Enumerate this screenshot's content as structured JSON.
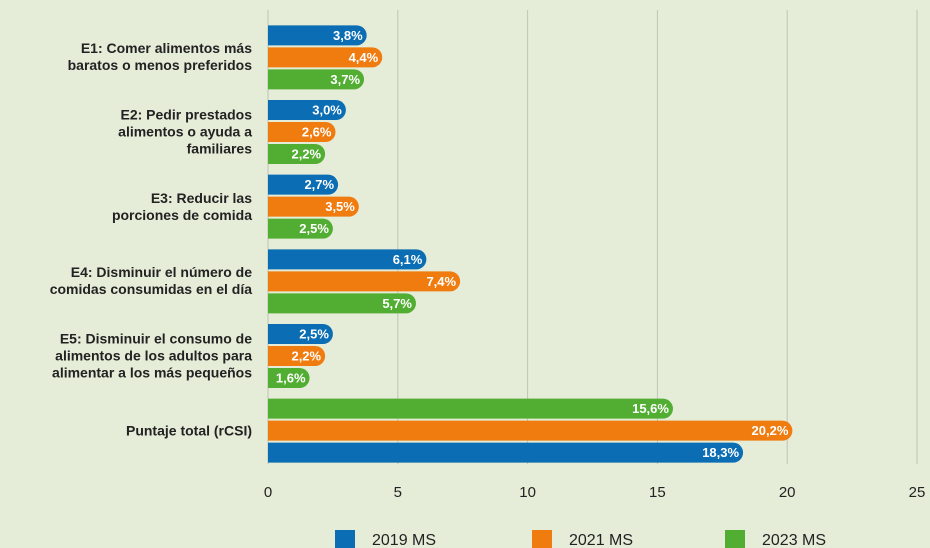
{
  "chart_data": {
    "type": "bar",
    "orientation": "horizontal",
    "categories": [
      "E1: Comer alimentos más\nbaratos o menos preferidos",
      "E2: Pedir prestados\nalimentos o ayuda a\nfamiliares",
      "E3: Reducir las\nporciones de comida",
      "E4: Disminuir el número de\ncomidas consumidas en el día",
      "E5: Disminuir el consumo de\nalimentos de los adultos para\nalimentar a los más pequeños",
      "Puntaje total (rCSI)"
    ],
    "series": [
      {
        "name": "2019 MS",
        "color": "#0b6db3",
        "values": [
          3.8,
          3.0,
          2.7,
          6.1,
          2.5,
          18.3
        ],
        "value_labels": [
          "3,8%",
          "3,0%",
          "2,7%",
          "6,1%",
          "2,5%",
          "18,3%"
        ]
      },
      {
        "name": "2021 MS",
        "color": "#f07b0f",
        "values": [
          4.4,
          2.6,
          3.5,
          7.4,
          2.2,
          20.2
        ],
        "value_labels": [
          "4,4%",
          "2,6%",
          "3,5%",
          "7,4%",
          "2,2%",
          "20,2%"
        ]
      },
      {
        "name": "2023 MS",
        "color": "#52ae33",
        "values": [
          3.7,
          2.2,
          2.5,
          5.7,
          1.6,
          15.6
        ],
        "value_labels": [
          "3,7%",
          "2,2%",
          "2,5%",
          "5,7%",
          "1,6%",
          "15,6%"
        ]
      }
    ],
    "xlim": [
      0,
      25
    ],
    "xticks": [
      0,
      5,
      10,
      15,
      20,
      25
    ],
    "grid": true,
    "legend": "bottom"
  }
}
